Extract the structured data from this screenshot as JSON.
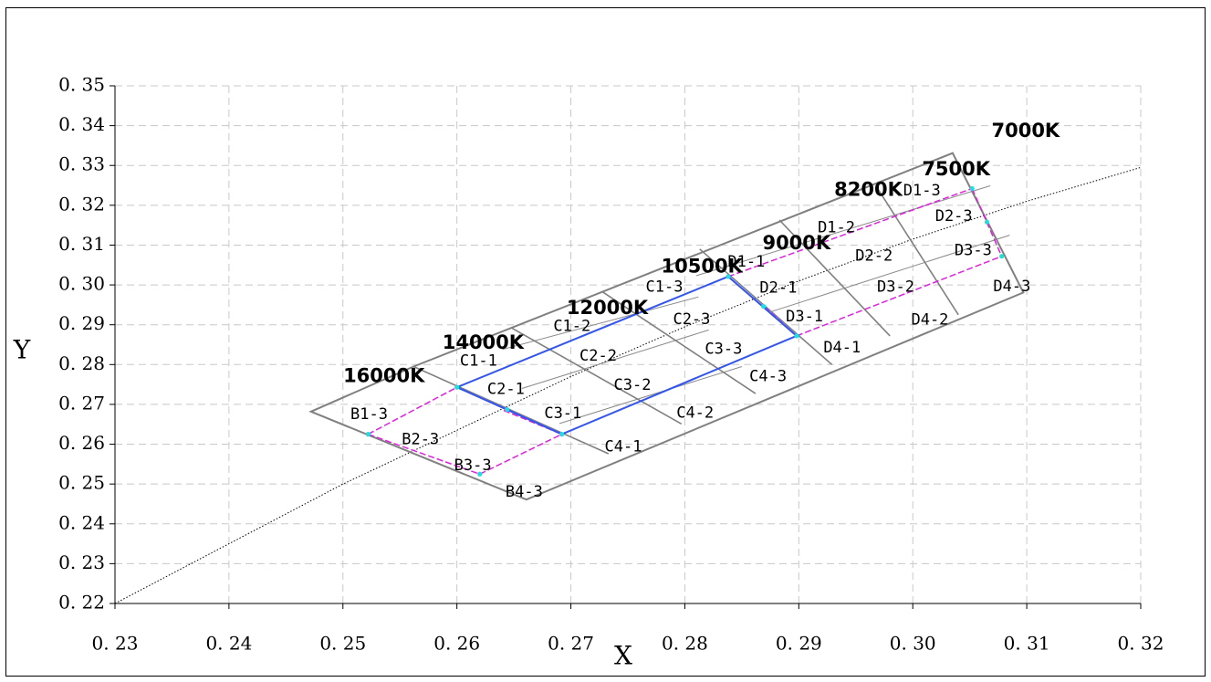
{
  "chart_data": {
    "type": "scatter",
    "title": "",
    "xlabel": "X",
    "ylabel": "Y",
    "xlim": [
      0.23,
      0.32
    ],
    "ylim": [
      0.22,
      0.35
    ],
    "grid": true,
    "x_ticks": [
      "0. 23",
      "0. 24",
      "0. 25",
      "0. 26",
      "0. 27",
      "0. 28",
      "0. 29",
      "0. 30",
      "0. 31",
      "0. 32"
    ],
    "y_ticks": [
      "0. 22",
      "0. 23",
      "0. 24",
      "0. 25",
      "0. 26",
      "0. 27",
      "0. 28",
      "0. 29",
      "0. 30",
      "0. 31",
      "0. 32",
      "0. 33",
      "0. 34",
      "0. 35"
    ],
    "cct_labels": [
      {
        "text": "16000K",
        "x": 0.2536,
        "y": 0.277
      },
      {
        "text": "14000K",
        "x": 0.2623,
        "y": 0.2854
      },
      {
        "text": "12000K",
        "x": 0.2732,
        "y": 0.294
      },
      {
        "text": "10500K",
        "x": 0.2815,
        "y": 0.3045
      },
      {
        "text": "9000K",
        "x": 0.2898,
        "y": 0.3103
      },
      {
        "text": "8200K",
        "x": 0.2961,
        "y": 0.3237
      },
      {
        "text": "7500K",
        "x": 0.3038,
        "y": 0.3289
      },
      {
        "text": "7000K",
        "x": 0.3099,
        "y": 0.3385
      }
    ],
    "region_labels": [
      {
        "text": "B1-3",
        "x": 0.2523,
        "y": 0.2675
      },
      {
        "text": "B2-3",
        "x": 0.2568,
        "y": 0.2612
      },
      {
        "text": "B3-3",
        "x": 0.2614,
        "y": 0.2546
      },
      {
        "text": "B4-3",
        "x": 0.2659,
        "y": 0.248
      },
      {
        "text": "C1-1",
        "x": 0.2619,
        "y": 0.2809
      },
      {
        "text": "C1-2",
        "x": 0.2701,
        "y": 0.2896
      },
      {
        "text": "C1-3",
        "x": 0.2782,
        "y": 0.2994
      },
      {
        "text": "C2-1",
        "x": 0.2643,
        "y": 0.2738
      },
      {
        "text": "C2-2",
        "x": 0.2724,
        "y": 0.2821
      },
      {
        "text": "C2-3",
        "x": 0.2806,
        "y": 0.2913
      },
      {
        "text": "C3-1",
        "x": 0.2693,
        "y": 0.2677
      },
      {
        "text": "C3-2",
        "x": 0.2754,
        "y": 0.2748
      },
      {
        "text": "C3-3",
        "x": 0.2834,
        "y": 0.2838
      },
      {
        "text": "C4-1",
        "x": 0.2746,
        "y": 0.2593
      },
      {
        "text": "C4-2",
        "x": 0.2809,
        "y": 0.2678
      },
      {
        "text": "C4-3",
        "x": 0.2873,
        "y": 0.277
      },
      {
        "text": "D1-1",
        "x": 0.2854,
        "y": 0.3058
      },
      {
        "text": "D1-2",
        "x": 0.2933,
        "y": 0.3144
      },
      {
        "text": "D1-3",
        "x": 0.3008,
        "y": 0.3236
      },
      {
        "text": "D2-1",
        "x": 0.2882,
        "y": 0.2992
      },
      {
        "text": "D2-2",
        "x": 0.2966,
        "y": 0.3072
      },
      {
        "text": "D2-3",
        "x": 0.3036,
        "y": 0.3172
      },
      {
        "text": "D3-1",
        "x": 0.2905,
        "y": 0.292
      },
      {
        "text": "D3-2",
        "x": 0.2985,
        "y": 0.2994
      },
      {
        "text": "D3-3",
        "x": 0.3053,
        "y": 0.3086
      },
      {
        "text": "D4-1",
        "x": 0.2938,
        "y": 0.2842
      },
      {
        "text": "D4-2",
        "x": 0.3015,
        "y": 0.2912
      },
      {
        "text": "D4-3",
        "x": 0.3087,
        "y": 0.2996
      }
    ],
    "outer_polygon": [
      [
        0.2472,
        0.2682
      ],
      [
        0.2562,
        0.2795
      ],
      [
        0.3035,
        0.3331
      ],
      [
        0.3097,
        0.2981
      ],
      [
        0.2661,
        0.2461
      ]
    ],
    "cct_lines": [
      [
        [
          0.2562,
          0.2795
        ],
        [
          0.2733,
          0.2576
        ]
      ],
      [
        [
          0.2648,
          0.2892
        ],
        [
          0.2797,
          0.2651
        ]
      ],
      [
        [
          0.2727,
          0.2984
        ],
        [
          0.2862,
          0.2727
        ]
      ],
      [
        [
          0.2813,
          0.309
        ],
        [
          0.2929,
          0.28
        ]
      ],
      [
        [
          0.2883,
          0.3163
        ],
        [
          0.298,
          0.2872
        ]
      ],
      [
        [
          0.2968,
          0.3247
        ],
        [
          0.304,
          0.2925
        ]
      ]
    ],
    "inner_lines": [
      [
        [
          0.264,
          0.2838
        ],
        [
          0.2812,
          0.297
        ]
      ],
      [
        [
          0.281,
          0.3023
        ],
        [
          0.3068,
          0.3249
        ]
      ],
      [
        [
          0.2657,
          0.274
        ],
        [
          0.2821,
          0.2887
        ]
      ],
      [
        [
          0.269,
          0.2652
        ],
        [
          0.285,
          0.2795
        ]
      ],
      [
        [
          0.2875,
          0.2932
        ],
        [
          0.3085,
          0.3125
        ]
      ]
    ],
    "blue_lines": [
      [
        [
          0.26,
          0.2743
        ],
        [
          0.2838,
          0.3021
        ]
      ],
      [
        [
          0.2692,
          0.2625
        ],
        [
          0.2898,
          0.2872
        ]
      ],
      [
        [
          0.26,
          0.2743
        ],
        [
          0.2692,
          0.2625
        ]
      ],
      [
        [
          0.2838,
          0.3021
        ],
        [
          0.2898,
          0.2872
        ]
      ]
    ],
    "magenta_lines": [
      [
        [
          0.2522,
          0.2625
        ],
        [
          0.26,
          0.2743
        ]
      ],
      [
        [
          0.2522,
          0.2625
        ],
        [
          0.262,
          0.2525
        ]
      ],
      [
        [
          0.262,
          0.2525
        ],
        [
          0.2692,
          0.2625
        ]
      ],
      [
        [
          0.2838,
          0.3021
        ],
        [
          0.3052,
          0.3242
        ]
      ],
      [
        [
          0.2898,
          0.2872
        ],
        [
          0.3078,
          0.3072
        ]
      ],
      [
        [
          0.3052,
          0.3242
        ],
        [
          0.3078,
          0.3072
        ]
      ],
      [
        [
          0.2641,
          0.2685
        ],
        [
          0.2692,
          0.2625
        ]
      ],
      [
        [
          0.287,
          0.2945
        ],
        [
          0.2898,
          0.2872
        ]
      ]
    ],
    "cyan_points": [
      [
        0.2522,
        0.2625
      ],
      [
        0.26,
        0.2743
      ],
      [
        0.2644,
        0.2687
      ],
      [
        0.2692,
        0.2625
      ],
      [
        0.262,
        0.2525
      ],
      [
        0.2838,
        0.3021
      ],
      [
        0.2869,
        0.2946
      ],
      [
        0.2898,
        0.2872
      ],
      [
        0.3052,
        0.3242
      ],
      [
        0.3065,
        0.3158
      ],
      [
        0.3078,
        0.3072
      ]
    ],
    "planckian_locus": [
      [
        0.23,
        0.22
      ],
      [
        0.24,
        0.235
      ],
      [
        0.25,
        0.25
      ],
      [
        0.26,
        0.2635
      ],
      [
        0.27,
        0.277
      ],
      [
        0.28,
        0.2895
      ],
      [
        0.29,
        0.301
      ],
      [
        0.3,
        0.3115
      ],
      [
        0.31,
        0.321
      ],
      [
        0.32,
        0.3295
      ]
    ],
    "colors": {
      "outline": "#808080",
      "inner": "#8a8a8a",
      "blue": "#3355ee",
      "magenta": "#dd22dd",
      "cyan": "#22dddd",
      "locus": "#000000"
    }
  }
}
